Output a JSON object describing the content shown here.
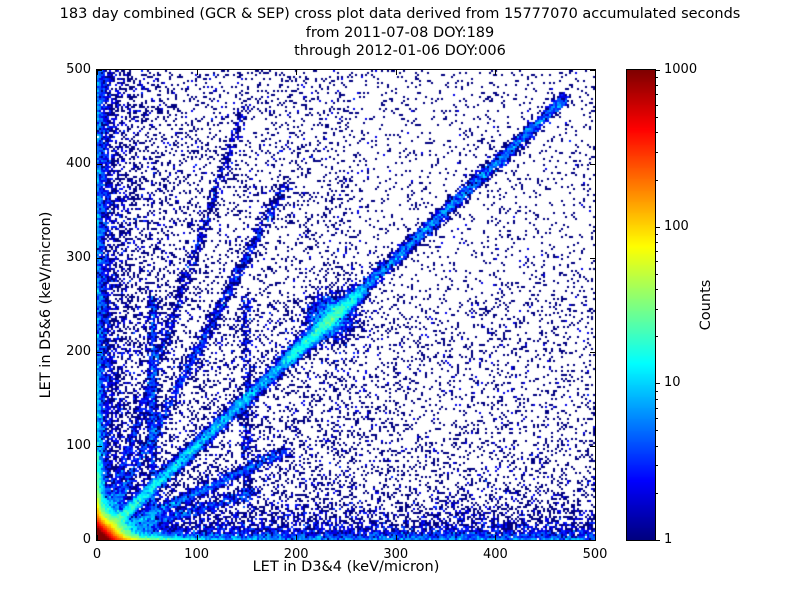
{
  "chart_data": {
    "type": "heatmap",
    "title": "183 day combined (GCR & SEP) cross plot data derived from 15777070 accumulated seconds",
    "subtitle_from": "from 2011-07-08 DOY:189",
    "subtitle_through": "through 2012-01-06 DOY:006",
    "xlabel": "LET in D3&4 (keV/micron)",
    "ylabel": "LET in D5&6 (keV/micron)",
    "xlim": [
      0,
      500
    ],
    "ylim": [
      0,
      500
    ],
    "xticks": [
      0,
      100,
      200,
      300,
      400,
      500
    ],
    "yticks": [
      0,
      100,
      200,
      300,
      400,
      500
    ],
    "grid": false,
    "colormap": "jet",
    "single_count_color": "#00007f",
    "max_count_color": "#7f0000",
    "colorbar": {
      "label": "Counts",
      "scale": "log",
      "min": 1,
      "max": 1000,
      "ticks": [
        1,
        10,
        100,
        1000
      ],
      "tick_labels": [
        "1",
        "10",
        "100",
        "1000"
      ]
    },
    "description": "2D log-scaled density cross plot of LET in D3&4 vs LET in D5&6. Intense red/orange hotspot at the origin (counts near 1000), bright cyan/green arms along both axes, a tight diagonal ridge y=x with a dense knot near (235,235), faint rays fanning from the origin at slopes ~0.3, 0.5, 2 and 3, weak vertical streaks near x=56 and x=150, and a sparse dark-blue single-count background scatter.",
    "density_features": [
      {
        "type": "blob",
        "n": 55000,
        "scale": 6.5,
        "comment": "origin hotspot"
      },
      {
        "type": "axisarm",
        "axis": "x",
        "n": 4000,
        "long_scale": 30,
        "short_scale": 3,
        "comment": "bright arm along x axis"
      },
      {
        "type": "axisarm",
        "axis": "y",
        "n": 4000,
        "long_scale": 35,
        "short_scale": 3,
        "comment": "bright arm along y axis"
      },
      {
        "type": "bandx",
        "n": 3500,
        "scale": 5,
        "comment": "dense column hugging x=0"
      },
      {
        "type": "bandy",
        "n": 3500,
        "scale": 5,
        "comment": "dense row hugging y=0"
      },
      {
        "type": "bandx",
        "n": 3000,
        "scale": 25
      },
      {
        "type": "bandy",
        "n": 3000,
        "scale": 25
      },
      {
        "type": "diag",
        "n": 13000,
        "tmax": 470,
        "pow": 2,
        "sigma": 3.5,
        "comment": "y=x ridge"
      },
      {
        "type": "diagseg",
        "n": 2600,
        "t0": 190,
        "t1": 265,
        "sigma": 4.5,
        "comment": "dense diagonal segment"
      },
      {
        "type": "knot",
        "n": 1800,
        "cx": 235,
        "cy": 237,
        "sx": 12,
        "sy": 12,
        "comment": "knot on diagonal"
      },
      {
        "type": "ray",
        "n": 2200,
        "slope": 2.0,
        "len": 190,
        "sigma": 3,
        "pow": 1.6
      },
      {
        "type": "ray",
        "n": 1500,
        "slope": 3.1,
        "len": 150,
        "sigma": 3,
        "pow": 1.6
      },
      {
        "type": "ray",
        "n": 2200,
        "slope": 0.5,
        "len": 190,
        "sigma": 3,
        "pow": 1.6
      },
      {
        "type": "ray",
        "n": 1200,
        "slope": 0.32,
        "len": 160,
        "sigma": 3,
        "pow": 1.6
      },
      {
        "type": "vline",
        "n": 900,
        "x": 56,
        "ymin": 20,
        "ymax": 260,
        "sigma": 2.5
      },
      {
        "type": "vline",
        "n": 450,
        "x": 150,
        "ymin": 40,
        "ymax": 260,
        "sigma": 3
      },
      {
        "type": "uniform",
        "n": 6000,
        "xmax": 500,
        "ymax": 500,
        "comment": "sparse background"
      },
      {
        "type": "uniform",
        "n": 2000,
        "xmax": 260,
        "ymax": 500
      },
      {
        "type": "uniform",
        "n": 2000,
        "xmax": 500,
        "ymax": 260
      }
    ]
  }
}
